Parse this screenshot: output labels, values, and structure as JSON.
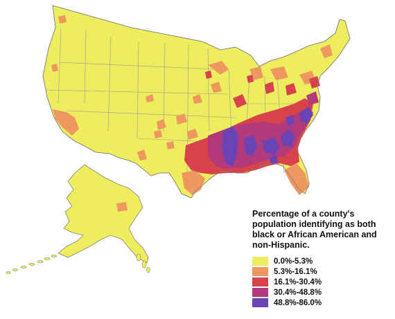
{
  "legend": {
    "title": "Percentage of a county's population identifying as both black or African American and non-Hispanic.",
    "title_lines": [
      "Percentage of a county's",
      "population identifying as both",
      "black or African American and",
      "non-Hispanic."
    ],
    "classes": [
      {
        "label": "0.0%-5.3%",
        "color": "#eded5e"
      },
      {
        "label": "5.3%-16.1%",
        "color": "#ee9860"
      },
      {
        "label": "16.1%-30.4%",
        "color": "#d8424a"
      },
      {
        "label": "30.4%-48.8%",
        "color": "#b23a7a"
      },
      {
        "label": "48.8%-86.0%",
        "color": "#6a44b4"
      }
    ]
  },
  "colors": {
    "land": "#eded5e",
    "boundary": "#808080",
    "background": "#ffffff"
  }
}
